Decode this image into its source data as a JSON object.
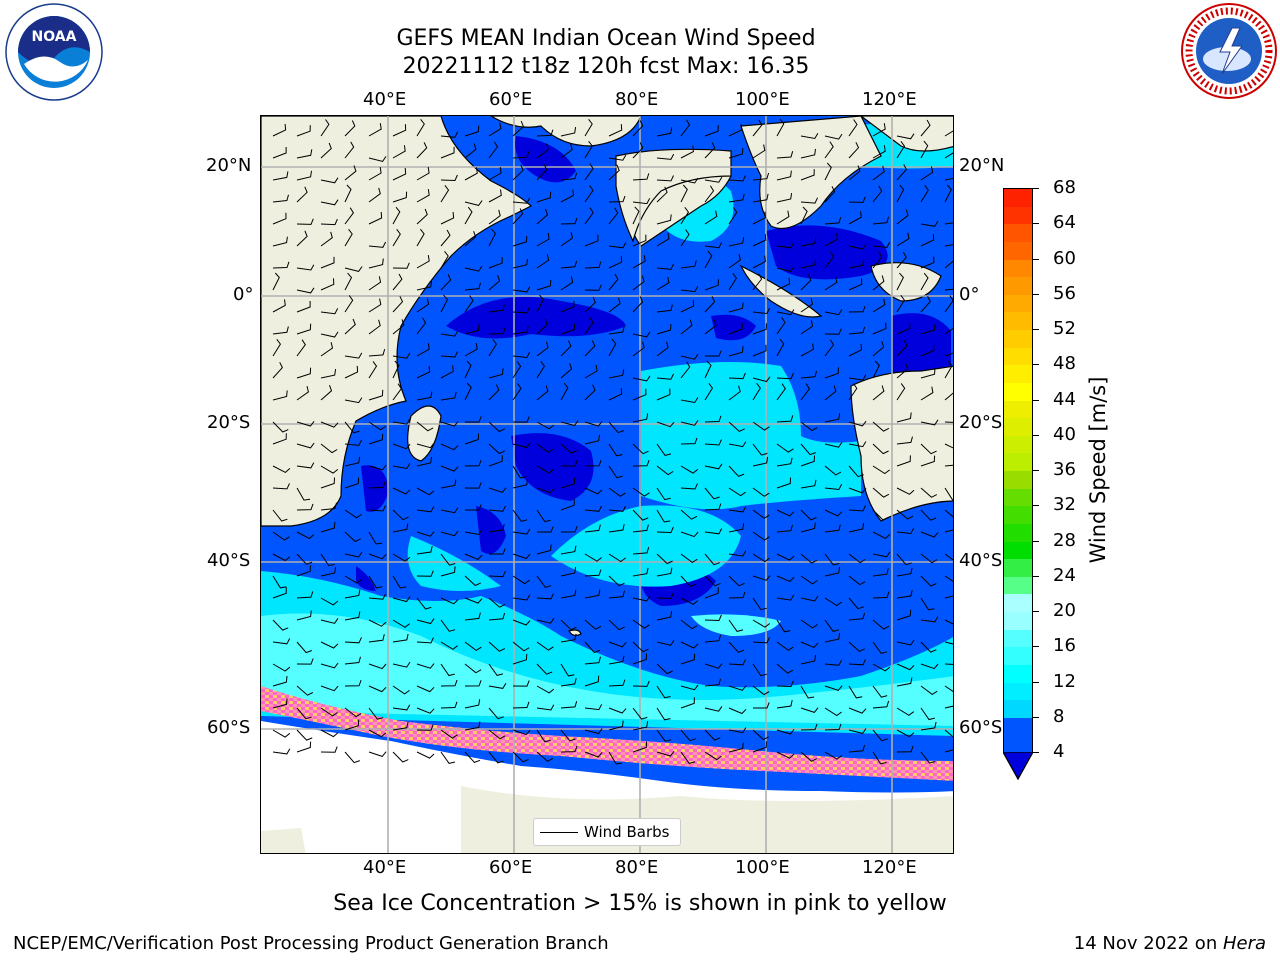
{
  "title_line1": "GEFS MEAN Indian Ocean Wind Speed",
  "title_line2": "20221112 t18z 120h fcst   Max: 16.35",
  "subtitle": "Sea Ice Concentration > 15% is shown in pink to yellow",
  "footer_left": "NCEP/EMC/Verification Post Processing Product Generation Branch",
  "footer_right_date": "14 Nov 2022 on ",
  "footer_right_host": "Hera",
  "legend_label": "Wind Barbs",
  "logos": {
    "left": "NOAA",
    "right": "NATIONAL WEATHER SERVICE"
  },
  "lon_ticks_top": [
    "40°E",
    "60°E",
    "80°E",
    "100°E",
    "120°E"
  ],
  "lon_ticks_bottom": [
    "40°E",
    "60°E",
    "80°E",
    "100°E",
    "120°E"
  ],
  "lat_ticks_left": [
    "20°N",
    "0°",
    "20°S",
    "40°S",
    "60°S"
  ],
  "lat_ticks_right": [
    "20°N",
    "0°",
    "20°S",
    "40°S",
    "60°S"
  ],
  "colorbar": {
    "title": "Wind Speed [m/s]",
    "tick_labels": [
      "4",
      "8",
      "12",
      "16",
      "20",
      "24",
      "28",
      "32",
      "36",
      "40",
      "44",
      "48",
      "52",
      "56",
      "60",
      "64",
      "68"
    ],
    "levels": [
      4,
      6,
      8,
      10,
      12,
      14,
      16,
      18,
      20,
      22,
      24,
      26,
      28,
      30,
      32,
      34,
      36,
      38,
      40,
      42,
      44,
      46,
      48,
      50,
      52,
      54,
      56,
      58,
      60,
      62,
      64,
      66,
      68
    ],
    "colors": [
      "#0055ff",
      "#0055ff",
      "#00d8ff",
      "#00eeff",
      "#00ffff",
      "#33ffff",
      "#55ffff",
      "#99ffff",
      "#aaffff",
      "#55ff88",
      "#33ee44",
      "#00dd00",
      "#22dd00",
      "#44dd00",
      "#66dd00",
      "#99dd00",
      "#bbee00",
      "#ccee00",
      "#ddee00",
      "#eeee00",
      "#ffff00",
      "#ffee00",
      "#ffdd00",
      "#ffcc00",
      "#ffbb00",
      "#ffaa00",
      "#ff9900",
      "#ff8800",
      "#ff6600",
      "#ff5500",
      "#ff3300",
      "#ff2200",
      "#ff0000"
    ],
    "under_color": "#0000dd"
  },
  "map_colors": {
    "land": "#efefdf",
    "wind_4_8": "#0055ff",
    "wind_under_4": "#0000dd",
    "wind_8_12": "#00eeff",
    "wind_12_16": "#44ffff",
    "sea_ice": [
      "#ff66cc",
      "#ff99aa",
      "#ffcc66"
    ],
    "grid": "#b0b0b0"
  }
}
